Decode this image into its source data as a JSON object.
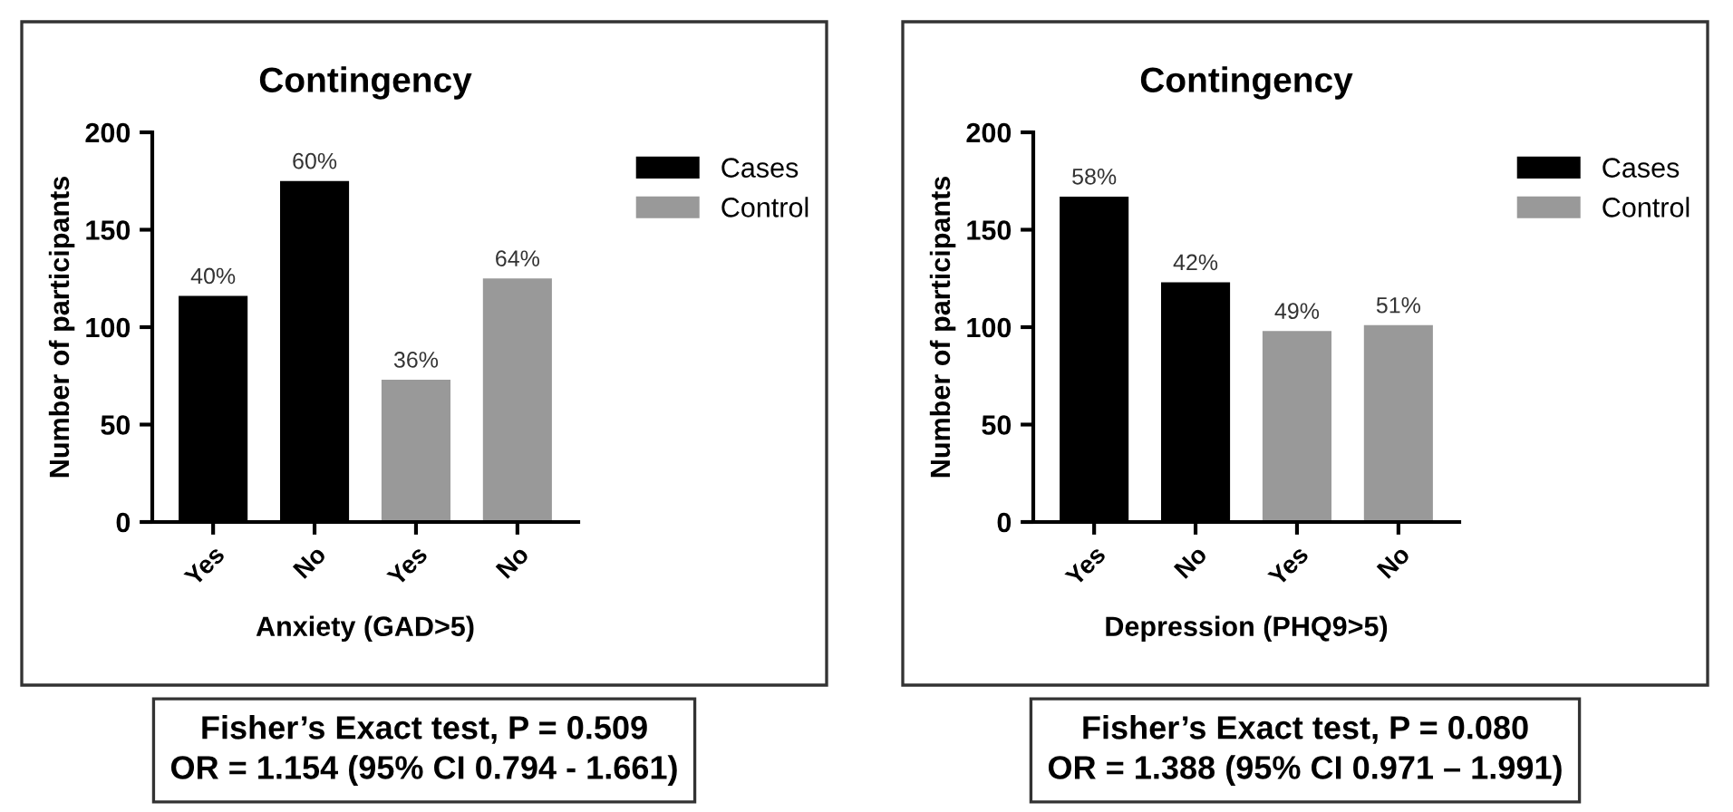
{
  "chart_data": [
    {
      "type": "bar",
      "title": "Contingency",
      "xlabel": "Anxiety (GAD>5)",
      "ylabel": "Number of participants",
      "categories": [
        "Yes",
        "No",
        "Yes",
        "No"
      ],
      "series": [
        {
          "name": "Cases",
          "color": "#000000",
          "values": [
            116,
            175,
            null,
            null
          ]
        },
        {
          "name": "Control",
          "color": "#999999",
          "values": [
            null,
            null,
            73,
            125
          ]
        }
      ],
      "ylim": [
        0,
        200
      ],
      "yticks": [
        0,
        50,
        100,
        150,
        200
      ],
      "grid": false,
      "legend": "right",
      "annotations": [
        "40%",
        "60%",
        "36%",
        "64%",
        "Fisher’s Exact test, P = 0.509\nOR = 1.154 (95% CI 0.794 - 1.661)"
      ]
    },
    {
      "type": "bar",
      "title": "Contingency",
      "xlabel": "Depression (PHQ9>5)",
      "ylabel": "Number of participants",
      "categories": [
        "Yes",
        "No",
        "Yes",
        "No"
      ],
      "series": [
        {
          "name": "Cases",
          "color": "#000000",
          "values": [
            167,
            123,
            null,
            null
          ]
        },
        {
          "name": "Control",
          "color": "#999999",
          "values": [
            null,
            null,
            98,
            101
          ]
        }
      ],
      "ylim": [
        0,
        200
      ],
      "yticks": [
        0,
        50,
        100,
        150,
        200
      ],
      "grid": false,
      "legend": "right",
      "annotations": [
        "58%",
        "42%",
        "49%",
        "51%",
        "Fisher’s Exact test, P = 0.080\nOR = 1.388 (95% CI 0.971 – 1.991)"
      ]
    }
  ]
}
